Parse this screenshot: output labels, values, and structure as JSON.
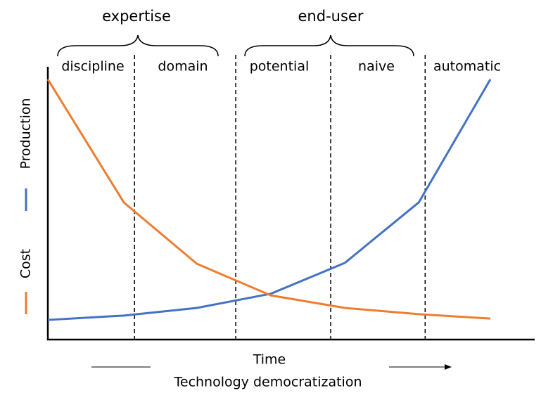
{
  "chart_data": {
    "type": "line",
    "groups": [
      "expertise",
      "end-user"
    ],
    "phases": [
      "discipline",
      "domain",
      "potential",
      "naive",
      "automatic"
    ],
    "x": [
      0,
      15.6,
      30.6,
      45.8,
      61,
      76.2,
      90.9
    ],
    "series": [
      {
        "name": "Production",
        "color": "#4472c4",
        "values": [
          7.2,
          8.8,
          11.6,
          16.8,
          28.1,
          50.3,
          95.4
        ]
      },
      {
        "name": "Cost",
        "color": "#ed7d31",
        "values": [
          95.4,
          50.3,
          27.8,
          16.2,
          11.6,
          9.3,
          7.7
        ]
      }
    ],
    "boundaries": [
      17.8,
      38.6,
      58.1,
      77.5
    ],
    "xlim": [
      0,
      100
    ],
    "ylim": [
      0,
      100
    ],
    "xlabel": "Time",
    "subtitle": "Technology democratization"
  }
}
